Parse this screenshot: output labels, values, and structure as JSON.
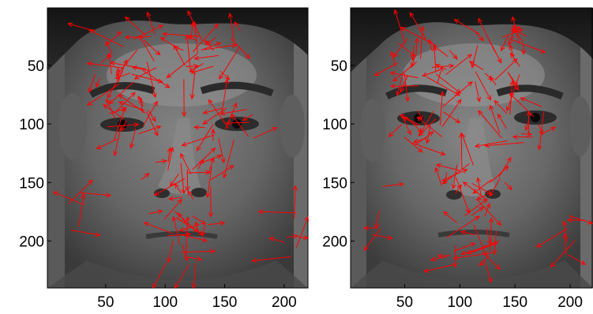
{
  "figure": {
    "arrow_color": "#ff0000",
    "panels": [
      {
        "name": "left-face-panel",
        "image_subject": "grayscale-face-photo",
        "xlim": [
          1,
          220
        ],
        "ylim": [
          1,
          240
        ],
        "y_reversed": true,
        "x_ticks": [
          "50",
          "100",
          "150",
          "200"
        ],
        "y_ticks": [
          "50",
          "100",
          "150",
          "200"
        ],
        "x_tick_values": [
          50,
          100,
          150,
          200
        ],
        "y_tick_values": [
          50,
          100,
          150,
          200
        ]
      },
      {
        "name": "right-face-panel",
        "image_subject": "grayscale-face-photo",
        "xlim": [
          1,
          220
        ],
        "ylim": [
          1,
          240
        ],
        "y_reversed": true,
        "x_ticks": [
          "50",
          "100",
          "150",
          "200"
        ],
        "y_ticks": [
          "50",
          "100",
          "150",
          "200"
        ],
        "x_tick_values": [
          50,
          100,
          150,
          200
        ],
        "y_tick_values": [
          50,
          100,
          150,
          200
        ]
      }
    ]
  }
}
